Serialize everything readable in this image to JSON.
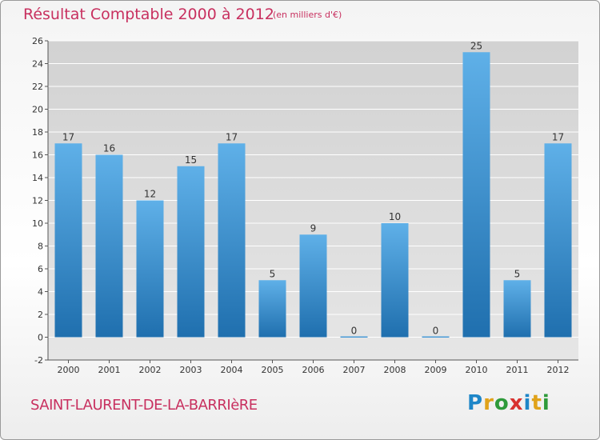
{
  "header": {
    "title": "Résultat Comptable 2000 à 2012",
    "subtitle": "(en milliers d'€)"
  },
  "footer": {
    "commune": "SAINT-LAURENT-DE-LA-BARRIèRE",
    "logo_text": "Proxiti",
    "logo_colors": [
      "#1e86c8",
      "#e0a21a",
      "#2e9a3a",
      "#d8322f",
      "#1e86c8",
      "#e0a21a",
      "#2e9a3a"
    ]
  },
  "colors": {
    "accent": "#c8305f",
    "bar_light": "#5fb0e8",
    "bar_dark": "#1f6fae"
  },
  "chart_data": {
    "type": "bar",
    "title": "Résultat Comptable 2000 à 2012",
    "subtitle": "(en milliers d'€)",
    "xlabel": "",
    "ylabel": "",
    "categories": [
      "2000",
      "2001",
      "2002",
      "2003",
      "2004",
      "2005",
      "2006",
      "2007",
      "2008",
      "2009",
      "2010",
      "2011",
      "2012"
    ],
    "values": [
      17,
      16,
      12,
      15,
      17,
      5,
      9,
      0,
      10,
      0,
      25,
      5,
      17
    ],
    "value_labels": [
      "17",
      "16",
      "12",
      "15",
      "17",
      "5",
      "9",
      "0",
      "10",
      "0",
      "25",
      "5",
      "17"
    ],
    "ylim": [
      -2,
      26
    ],
    "yticks": [
      -2,
      0,
      2,
      4,
      6,
      8,
      10,
      12,
      14,
      16,
      18,
      20,
      22,
      24,
      26
    ],
    "grid": true
  }
}
